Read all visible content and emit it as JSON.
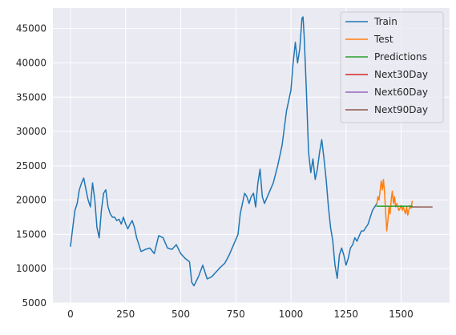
{
  "chart_data": {
    "type": "line",
    "title": "",
    "xlabel": "",
    "ylabel": "",
    "xlim": [
      -80,
      1720
    ],
    "ylim": [
      5000,
      48000
    ],
    "x_ticks": [
      0,
      250,
      500,
      750,
      1000,
      1250,
      1500
    ],
    "y_ticks": [
      5000,
      10000,
      15000,
      20000,
      25000,
      30000,
      35000,
      40000,
      45000
    ],
    "grid": true,
    "legend_position": "top-right",
    "series": [
      {
        "name": "Train",
        "color": "#1f77b4",
        "x": [
          0,
          10,
          20,
          30,
          40,
          50,
          60,
          70,
          80,
          90,
          100,
          110,
          120,
          130,
          140,
          150,
          160,
          170,
          180,
          190,
          200,
          210,
          220,
          230,
          240,
          250,
          260,
          270,
          280,
          290,
          300,
          310,
          320,
          340,
          360,
          380,
          400,
          420,
          440,
          460,
          480,
          500,
          520,
          540,
          550,
          560,
          580,
          600,
          620,
          640,
          660,
          680,
          700,
          720,
          740,
          760,
          770,
          780,
          790,
          800,
          810,
          820,
          830,
          840,
          850,
          860,
          870,
          880,
          900,
          920,
          940,
          960,
          980,
          1000,
          1010,
          1020,
          1030,
          1040,
          1050,
          1055,
          1060,
          1070,
          1080,
          1090,
          1100,
          1110,
          1120,
          1130,
          1140,
          1150,
          1160,
          1170,
          1180,
          1190,
          1200,
          1210,
          1220,
          1230,
          1240,
          1250,
          1260,
          1270,
          1280,
          1290,
          1300,
          1310,
          1320,
          1330,
          1340,
          1350,
          1360,
          1370,
          1380,
          1390
        ],
        "y": [
          13300,
          16000,
          18500,
          19500,
          21500,
          22500,
          23200,
          21500,
          20000,
          19000,
          22500,
          20000,
          16000,
          14500,
          18500,
          21000,
          21500,
          19000,
          18000,
          17500,
          17500,
          17000,
          17200,
          16500,
          17500,
          16500,
          15800,
          16500,
          17000,
          16000,
          14500,
          13500,
          12500,
          12800,
          13000,
          12200,
          14800,
          14500,
          13000,
          12800,
          13500,
          12200,
          11500,
          11000,
          8000,
          7500,
          8800,
          10500,
          8500,
          8800,
          9500,
          10200,
          10800,
          12000,
          13500,
          15000,
          18000,
          19500,
          21000,
          20500,
          19500,
          20500,
          21000,
          19000,
          22500,
          24500,
          20500,
          19500,
          21000,
          22500,
          25000,
          28000,
          33000,
          36000,
          40000,
          43000,
          40000,
          42000,
          46500,
          46700,
          44000,
          36000,
          27000,
          24000,
          26000,
          23000,
          24500,
          27000,
          28800,
          26000,
          23000,
          19000,
          16000,
          14000,
          10500,
          8600,
          12000,
          13000,
          12000,
          10500,
          11500,
          13000,
          13500,
          14500,
          14000,
          14800,
          15500,
          15500,
          16000,
          16500,
          17500,
          18500,
          19000,
          19500
        ]
      },
      {
        "name": "Test",
        "color": "#ff7f0e",
        "x": [
          1390,
          1395,
          1400,
          1405,
          1410,
          1415,
          1420,
          1425,
          1430,
          1435,
          1440,
          1445,
          1450,
          1455,
          1460,
          1465,
          1470,
          1475,
          1480,
          1485,
          1490,
          1495,
          1500,
          1505,
          1510,
          1515,
          1520,
          1525,
          1530,
          1535,
          1540,
          1545,
          1550
        ],
        "y": [
          19500,
          20500,
          20000,
          21500,
          22800,
          21500,
          23000,
          21000,
          18000,
          15500,
          17000,
          19000,
          18000,
          20000,
          21300,
          19500,
          20500,
          19000,
          19500,
          19000,
          18500,
          18800,
          19200,
          18500,
          19000,
          18500,
          18000,
          19000,
          17800,
          18500,
          19200,
          18800,
          19800
        ]
      },
      {
        "name": "Predictions",
        "color": "#2ca02c",
        "x": [
          1390,
          1550
        ],
        "y": [
          19100,
          19100
        ]
      },
      {
        "name": "Next30Day",
        "color": "#d62728",
        "x": [
          1550,
          1580
        ],
        "y": [
          19000,
          19000
        ]
      },
      {
        "name": "Next60Day",
        "color": "#9467bd",
        "x": [
          1550,
          1610
        ],
        "y": [
          19000,
          19000
        ]
      },
      {
        "name": "Next90Day",
        "color": "#8c564b",
        "x": [
          1550,
          1640
        ],
        "y": [
          19000,
          19000
        ]
      }
    ]
  },
  "colors": {
    "plot_background": "#eaeaf2",
    "grid": "#ffffff",
    "tick_text": "#262626"
  }
}
